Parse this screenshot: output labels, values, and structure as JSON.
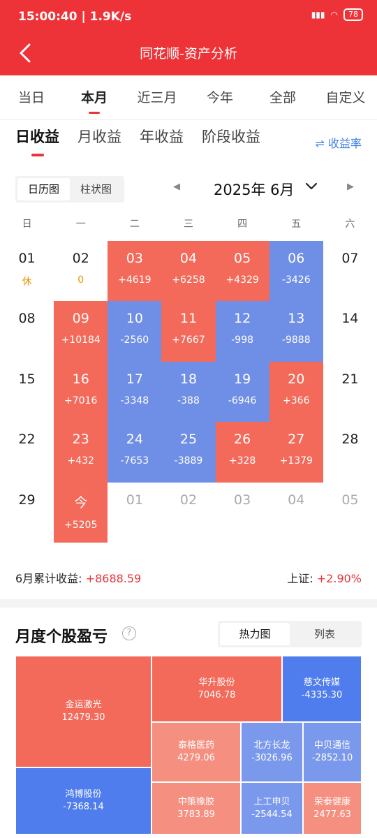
{
  "status": {
    "time": "15:00:40 | 1.9K/s",
    "net": "HD",
    "battery": "78"
  },
  "header": {
    "title": "同花顺-资产分析"
  },
  "period_tabs": [
    "当日",
    "本月",
    "近三月",
    "今年",
    "全部",
    "自定义"
  ],
  "earn_tabs": [
    "日收益",
    "月收益",
    "年收益",
    "阶段收益"
  ],
  "rate_label": "⇌ 收益率",
  "view_options": [
    "日历图",
    "柱状图"
  ],
  "month": {
    "label": "2025年 6月",
    "prev": "◀",
    "next": "▶"
  },
  "weekdays": [
    "日",
    "一",
    "二",
    "三",
    "四",
    "五",
    "六"
  ],
  "calendar": [
    {
      "d": "01",
      "v": "休",
      "t": "hol"
    },
    {
      "d": "02",
      "v": "0",
      "t": "hol"
    },
    {
      "d": "03",
      "v": "+4619",
      "t": "up"
    },
    {
      "d": "04",
      "v": "+6258",
      "t": "up"
    },
    {
      "d": "05",
      "v": "+4329",
      "t": "up"
    },
    {
      "d": "06",
      "v": "-3426",
      "t": "down"
    },
    {
      "d": "07",
      "v": "",
      "t": ""
    },
    {
      "d": "08",
      "v": "",
      "t": ""
    },
    {
      "d": "09",
      "v": "+10184",
      "t": "up"
    },
    {
      "d": "10",
      "v": "-2560",
      "t": "down"
    },
    {
      "d": "11",
      "v": "+7667",
      "t": "up"
    },
    {
      "d": "12",
      "v": "-998",
      "t": "down"
    },
    {
      "d": "13",
      "v": "-9888",
      "t": "down"
    },
    {
      "d": "14",
      "v": "",
      "t": ""
    },
    {
      "d": "15",
      "v": "",
      "t": ""
    },
    {
      "d": "16",
      "v": "+7016",
      "t": "up"
    },
    {
      "d": "17",
      "v": "-3348",
      "t": "down"
    },
    {
      "d": "18",
      "v": "-388",
      "t": "down"
    },
    {
      "d": "19",
      "v": "-6946",
      "t": "down"
    },
    {
      "d": "20",
      "v": "+366",
      "t": "up"
    },
    {
      "d": "21",
      "v": "",
      "t": ""
    },
    {
      "d": "22",
      "v": "",
      "t": ""
    },
    {
      "d": "23",
      "v": "+432",
      "t": "up"
    },
    {
      "d": "24",
      "v": "-7653",
      "t": "down"
    },
    {
      "d": "25",
      "v": "-3889",
      "t": "down"
    },
    {
      "d": "26",
      "v": "+328",
      "t": "up"
    },
    {
      "d": "27",
      "v": "+1379",
      "t": "up"
    },
    {
      "d": "28",
      "v": "",
      "t": ""
    },
    {
      "d": "29",
      "v": "",
      "t": ""
    },
    {
      "d": "今",
      "v": "+5205",
      "t": "up"
    },
    {
      "d": "01",
      "v": "",
      "t": "next"
    },
    {
      "d": "02",
      "v": "",
      "t": "next"
    },
    {
      "d": "03",
      "v": "",
      "t": "next"
    },
    {
      "d": "04",
      "v": "",
      "t": "next"
    },
    {
      "d": "05",
      "v": "",
      "t": "next"
    }
  ],
  "summary": {
    "month_label": "6月累计收益:",
    "month_value": "+8688.59",
    "index_label": "上证:",
    "index_value": "+2.90%"
  },
  "section": {
    "title": "月度个股盈亏",
    "help": "?",
    "options": [
      "热力图",
      "列表"
    ]
  },
  "treemap": [
    {
      "name": "金运激光",
      "value": "12479.30",
      "c": "up1",
      "k": 0
    },
    {
      "name": "鸿博股份",
      "value": "-7368.14",
      "c": "dn1",
      "k": 1
    },
    {
      "name": "华升股份",
      "value": "7046.78",
      "c": "up1",
      "k": 2
    },
    {
      "name": "慈文传媒",
      "value": "-4335.30",
      "c": "dn1",
      "k": 3
    },
    {
      "name": "泰格医药",
      "value": "4279.06",
      "c": "up2",
      "k": 4
    },
    {
      "name": "北方长龙",
      "value": "-3026.96",
      "c": "dn2",
      "k": 5
    },
    {
      "name": "中贝通信",
      "value": "-2852.10",
      "c": "dn2",
      "k": 6
    },
    {
      "name": "中策橡胶",
      "value": "3783.89",
      "c": "up2",
      "k": 7
    },
    {
      "name": "上工申贝",
      "value": "-2544.54",
      "c": "dn2",
      "k": 8
    },
    {
      "name": "荣泰健康",
      "value": "2477.63",
      "c": "up2",
      "k": 9
    }
  ],
  "colors": {
    "brand": "#ee3338",
    "up": "#f36a5a",
    "down": "#6f8fe6",
    "link": "#3a7ee8"
  }
}
